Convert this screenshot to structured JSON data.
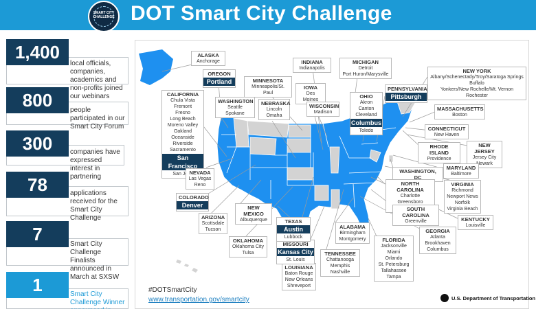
{
  "header": {
    "title": "DOT Smart City Challenge",
    "logo_text": "SMART CITY\nCHALLENGE"
  },
  "stats": [
    {
      "number": "1,400",
      "text": "local officials, companies, academics and non-profits joined our webinars"
    },
    {
      "number": "800",
      "text": "people participated in our Smart City Forum"
    },
    {
      "number": "300",
      "text": "companies have expressed interest in partnering"
    },
    {
      "number": "78",
      "text": "applications received for the Smart City Challenge"
    },
    {
      "number": "7",
      "text": "Smart City Challenge Finalists announced in March at SXSW"
    },
    {
      "number": "1",
      "text": "Smart City Challenge Winner announced in June"
    }
  ],
  "map_labels": {
    "alaska": {
      "state": "ALASKA",
      "cities": "Anchorage"
    },
    "oregon": {
      "state": "OREGON",
      "finalist": "Portland"
    },
    "california": {
      "state": "CALIFORNIA",
      "cities": "Chula Vista\nFremont\nFresno\nLong Beach\nMoreno Valley\nOakland\nOceanside\nRiverside\nSacramento",
      "finalist": "San Francisco",
      "cities_after": "San Jose"
    },
    "washington": {
      "state": "WASHINGTON",
      "cities": "Seattle\nSpokane"
    },
    "minnesota": {
      "state": "MINNESOTA",
      "cities": "Minneapolis/St. Paul"
    },
    "nebraska": {
      "state": "NEBRASKA",
      "cities": "Lincoln\nOmaha"
    },
    "indiana": {
      "state": "INDIANA",
      "cities": "Indianapolis"
    },
    "iowa": {
      "state": "IOWA",
      "cities": "Des Moines"
    },
    "wisconsin": {
      "state": "WISCONSIN",
      "cities": "Madison"
    },
    "michigan": {
      "state": "MICHIGAN",
      "cities": "Detroit\nPort Huron/Marysville"
    },
    "ohio": {
      "state": "OHIO",
      "cities": "Akron\nCanton\nCleveland",
      "finalist": "Columbus",
      "cities_after": "Toledo"
    },
    "pennsylvania": {
      "state": "PENNSYLVANIA",
      "finalist": "Pittsburgh"
    },
    "new_york": {
      "state": "NEW YORK",
      "cities": "Albany/Schenectady/Troy/Saratoga Springs\nBuffalo\nYonkers/New Rochelle/Mt. Vernon\nRochester"
    },
    "massachusetts": {
      "state": "MASSACHUSETTS",
      "cities": "Boston"
    },
    "connecticut": {
      "state": "CONNECTICUT",
      "cities": "New Haven"
    },
    "rhode_island": {
      "state": "RHODE ISLAND",
      "cities": "Providence"
    },
    "new_jersey": {
      "state": "NEW JERSEY",
      "cities": "Jersey City\nNewark"
    },
    "washington_dc": {
      "state": "WASHINGTON, DC"
    },
    "maryland": {
      "state": "MARYLAND",
      "cities": "Baltimore"
    },
    "north_carolina": {
      "state": "NORTH CAROLINA",
      "cities": "Charlotte\nGreensboro\nRaleigh"
    },
    "virginia": {
      "state": "VIRGINIA",
      "cities": "Richmond\nNewport News\nNorfolk\nVirginia Beach"
    },
    "south_carolina": {
      "state": "SOUTH CAROLINA",
      "cities": "Greenville"
    },
    "kentucky": {
      "state": "KENTUCKY",
      "cities": "Louisville"
    },
    "georgia": {
      "state": "GEORGIA",
      "cities": "Atlanta\nBrookhaven\nColumbus"
    },
    "florida": {
      "state": "FLORIDA",
      "cities": "Jacksonville\nMiami\nOrlando\nSt. Petersburg\nTallahassee\nTampa"
    },
    "tennessee": {
      "state": "TENNESSEE",
      "cities": "Chattanooga\nMemphis\nNashville"
    },
    "alabama": {
      "state": "ALABAMA",
      "cities": "Birmingham\nMontgomery"
    },
    "louisiana": {
      "state": "LOUISIANA",
      "cities": "Baton Rouge\nNew Orleans\nShreveport"
    },
    "missouri": {
      "state": "MISSOURI",
      "finalist": "Kansas City",
      "cities_after": "St. Louis"
    },
    "texas": {
      "state": "TEXAS",
      "finalist": "Austin",
      "cities_after": "Lubbock"
    },
    "oklahoma": {
      "state": "OKLAHOMA",
      "cities": "Oklahoma City\nTulsa"
    },
    "new_mexico": {
      "state": "NEW MEXICO",
      "cities": "Albuquerque"
    },
    "arizona": {
      "state": "ARIZONA",
      "cities": "Scottsdale\nTucson"
    },
    "colorado": {
      "state": "COLORADO",
      "finalist": "Denver"
    },
    "nevada": {
      "state": "NEVADA",
      "cities": "Las Vegas\nReno"
    }
  },
  "footer": {
    "hashtag": "#DOTSmartCity",
    "url": "www.transportation.gov/smartcity",
    "agency": "U.S. Department of Transportation"
  },
  "colors": {
    "brand_blue": "#1c9ad6",
    "navy": "#143d5c",
    "participating_state": "#1e90f0",
    "other_state": "#d3d3d3"
  }
}
